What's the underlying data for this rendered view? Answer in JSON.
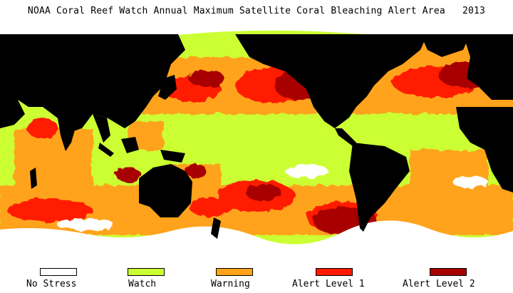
{
  "title": "NOAA Coral Reef Watch Annual Maximum Satellite Coral Bleaching Alert Area   2013",
  "legend": [
    {
      "label": "No Stress",
      "color": "#ffffff"
    },
    {
      "label": "Watch",
      "color": "#ccff33"
    },
    {
      "label": "Warning",
      "color": "#ffa31a"
    },
    {
      "label": "Alert Level 1",
      "color": "#ff1a00"
    },
    {
      "label": "Alert Level 2",
      "color": "#a80000"
    }
  ],
  "colors": {
    "land": "#000000",
    "ice": "#ffffff",
    "ocean_base": "#ccff33"
  }
}
